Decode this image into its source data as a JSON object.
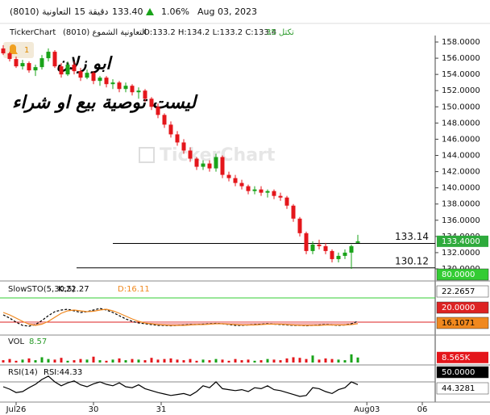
{
  "header": {
    "symbol": "(8010) التعاونية",
    "interval": "15 دقيقة",
    "price": "133.40",
    "change": "1.06%",
    "date": "Aug 03, 2023"
  },
  "subheader": {
    "source": "TickerChart",
    "name": "التعاونية الشموع (8010)",
    "ohlc": "O:133.2  H:134.2  L:133.2  C:133.4",
    "zoom": "تكتل 35"
  },
  "alerts": "1",
  "watermark": "TickerChart",
  "notes": [
    "ابو زلان",
    "ليست توصية بيع او شراء"
  ],
  "chart_data": [
    {
      "type": "candlestick",
      "x": [
        0,
        1,
        2,
        3,
        4,
        5,
        6,
        7,
        8,
        9,
        10,
        11,
        12,
        13,
        14,
        15,
        16,
        17,
        18,
        19,
        20,
        21,
        22,
        23,
        24,
        25,
        26,
        27,
        28,
        29,
        30,
        31,
        32,
        33,
        34,
        35,
        36,
        37,
        38,
        39,
        40,
        41,
        42,
        43,
        44,
        45,
        46,
        47,
        48,
        49,
        50,
        51,
        52,
        53,
        54,
        55
      ],
      "open": [
        157.2,
        156.6,
        155.9,
        155.0,
        155.4,
        154.5,
        154.9,
        156.0,
        156.8,
        155.0,
        154.0,
        155.2,
        154.4,
        153.6,
        154.2,
        153.2,
        153.6,
        152.8,
        153.0,
        152.2,
        152.6,
        151.8,
        152.0,
        151.0,
        150.0,
        149.0,
        147.8,
        146.6,
        145.6,
        144.6,
        143.6,
        142.6,
        143.0,
        142.4,
        143.8,
        141.6,
        141.2,
        140.6,
        140.2,
        139.6,
        139.8,
        139.4,
        139.6,
        139.0,
        138.8,
        137.8,
        136.2,
        134.4,
        132.2,
        133.0,
        132.8,
        132.2,
        131.2,
        131.6,
        132.0,
        133.2
      ],
      "high": [
        157.6,
        156.8,
        156.2,
        155.8,
        155.6,
        155.2,
        156.4,
        157.2,
        157.0,
        155.4,
        155.6,
        155.6,
        154.8,
        154.6,
        154.4,
        153.8,
        153.8,
        153.4,
        153.2,
        153.0,
        152.8,
        152.4,
        152.2,
        151.2,
        150.4,
        149.2,
        148.2,
        147.0,
        146.0,
        145.0,
        143.8,
        143.4,
        143.4,
        144.2,
        144.0,
        142.0,
        141.6,
        141.0,
        140.4,
        140.2,
        140.2,
        139.8,
        139.8,
        139.4,
        139.0,
        138.0,
        136.4,
        134.6,
        133.4,
        133.6,
        133.2,
        132.4,
        132.0,
        132.4,
        133.0,
        134.2
      ],
      "low": [
        156.4,
        155.6,
        154.8,
        154.6,
        154.2,
        153.8,
        154.6,
        155.6,
        154.8,
        153.6,
        153.8,
        154.0,
        153.2,
        153.4,
        152.8,
        152.6,
        152.4,
        152.2,
        151.8,
        151.8,
        151.4,
        151.0,
        150.6,
        149.6,
        148.6,
        147.4,
        146.2,
        145.2,
        144.2,
        143.2,
        142.2,
        142.2,
        142.0,
        142.0,
        141.2,
        140.8,
        140.2,
        139.8,
        139.2,
        139.2,
        139.0,
        138.8,
        138.6,
        138.4,
        137.4,
        135.8,
        134.0,
        131.8,
        131.8,
        132.4,
        131.8,
        130.8,
        130.8,
        131.2,
        130.0,
        133.2
      ],
      "close": [
        156.6,
        155.9,
        155.0,
        155.4,
        154.5,
        154.9,
        156.0,
        156.8,
        155.0,
        154.0,
        155.2,
        154.4,
        153.6,
        154.2,
        153.2,
        153.6,
        152.8,
        153.0,
        152.2,
        152.6,
        151.8,
        152.0,
        151.0,
        150.0,
        149.0,
        147.8,
        146.6,
        145.6,
        144.6,
        143.6,
        142.6,
        143.0,
        142.4,
        143.8,
        141.6,
        141.2,
        140.6,
        140.2,
        139.6,
        139.8,
        139.4,
        139.6,
        139.0,
        138.8,
        137.8,
        136.2,
        134.4,
        132.2,
        133.0,
        132.8,
        132.2,
        131.2,
        131.6,
        132.0,
        132.8,
        133.4
      ],
      "up_color": "#19a319",
      "down_color": "#e4161b",
      "xlim": [
        -0.5,
        67
      ],
      "xticks": [
        {
          "value": 2,
          "label": "Jul26"
        },
        {
          "value": 14,
          "label": "30"
        },
        {
          "value": 24.5,
          "label": "31"
        },
        {
          "value": 56.4,
          "label": "Aug03"
        },
        {
          "value": 65,
          "label": "06"
        }
      ],
      "ylim": [
        129.2,
        158.8
      ],
      "yticks": [
        {
          "value": 130,
          "label": "130.0000"
        },
        {
          "value": 132,
          "label": "132.0000"
        },
        {
          "value": 134,
          "label": "134.0000"
        },
        {
          "value": 136,
          "label": "136.0000"
        },
        {
          "value": 138,
          "label": "138.0000"
        },
        {
          "value": 140,
          "label": "140.0000"
        },
        {
          "value": 142,
          "label": "142.0000"
        },
        {
          "value": 144,
          "label": "144.0000"
        },
        {
          "value": 146,
          "label": "146.0000"
        },
        {
          "value": 148,
          "label": "148.0000"
        },
        {
          "value": 150,
          "label": "150.0000"
        },
        {
          "value": 152,
          "label": "152.0000"
        },
        {
          "value": 154,
          "label": "154.0000"
        },
        {
          "value": 156,
          "label": "156.0000"
        },
        {
          "value": 158,
          "label": "158.0000"
        }
      ],
      "hlines": [
        133.14,
        130.12
      ],
      "last": {
        "value": 133.4,
        "label": "133.4000",
        "color": "#2eaa3c"
      }
    },
    {
      "type": "line",
      "title": "SlowSTO(5,30,5)",
      "ylim": [
        -6,
        114
      ],
      "series": [
        {
          "name": "K:22.27",
          "color": "#000000",
          "dashed": true,
          "values": [
            38,
            30,
            20,
            12,
            10,
            14,
            24,
            36,
            46,
            50,
            52,
            48,
            44,
            46,
            50,
            54,
            50,
            44,
            36,
            28,
            22,
            18,
            16,
            14,
            12,
            12,
            11,
            12,
            13,
            14,
            14,
            15,
            16,
            17,
            16,
            14,
            12,
            12,
            13,
            14,
            15,
            16,
            15,
            14,
            13,
            12,
            12,
            11,
            12,
            13,
            14,
            13,
            12,
            13,
            16,
            22.2657
          ]
        },
        {
          "name": "D:16.11",
          "color": "#f0881e",
          "dashed": false,
          "values": [
            44,
            38,
            30,
            22,
            15,
            12,
            15,
            22,
            32,
            42,
            48,
            50,
            48,
            46,
            47,
            50,
            52,
            48,
            42,
            35,
            28,
            22,
            18,
            16,
            14,
            13,
            12,
            12,
            12,
            13,
            14,
            14,
            15,
            16,
            16,
            15,
            14,
            13,
            13,
            13,
            14,
            15,
            15,
            15,
            14,
            13,
            12,
            12,
            12,
            12,
            13,
            13,
            13,
            13,
            14,
            16.1071
          ]
        }
      ],
      "levels": [
        {
          "value": 80,
          "label": "80.0000",
          "color": "#33cc33"
        },
        {
          "value": 20,
          "label": "20.0000",
          "color": "#dd2222"
        }
      ],
      "last_colors": [
        "#ffffff",
        "#f0881e"
      ],
      "fill_color": "#f4b4b4"
    },
    {
      "type": "bar",
      "title": "VOL",
      "subtitle": "8.57",
      "ylim": [
        0,
        40
      ],
      "values": [
        4,
        6,
        3,
        5,
        7,
        4,
        9,
        6,
        5,
        8,
        3,
        4,
        6,
        5,
        10,
        4,
        3,
        5,
        7,
        4,
        6,
        5,
        4,
        8,
        5,
        6,
        7,
        5,
        4,
        6,
        3,
        5,
        4,
        6,
        5,
        3,
        6,
        4,
        5,
        3,
        4,
        6,
        5,
        4,
        7,
        9,
        8,
        6,
        12,
        5,
        7,
        6,
        5,
        4,
        14,
        8.565
      ],
      "last": {
        "value": 8.565,
        "label": "8.565K",
        "color": "#e4161b"
      }
    },
    {
      "type": "line",
      "title": "RSI(14)",
      "ylim": [
        10,
        80
      ],
      "series": [
        {
          "name": "RSI:44.33",
          "color": "#000000",
          "dashed": false,
          "values": [
            40,
            35,
            28,
            30,
            38,
            45,
            55,
            62,
            50,
            42,
            48,
            52,
            44,
            40,
            46,
            50,
            45,
            42,
            48,
            40,
            38,
            44,
            36,
            32,
            28,
            25,
            22,
            24,
            26,
            22,
            30,
            42,
            38,
            50,
            36,
            34,
            32,
            34,
            30,
            38,
            36,
            42,
            34,
            32,
            28,
            24,
            20,
            22,
            38,
            36,
            30,
            26,
            34,
            38,
            50,
            44.3281
          ]
        }
      ],
      "levels": [
        {
          "value": 50,
          "label": "50.0000",
          "color": "#888888"
        }
      ],
      "last_colors": [
        "#ffffff"
      ]
    }
  ]
}
